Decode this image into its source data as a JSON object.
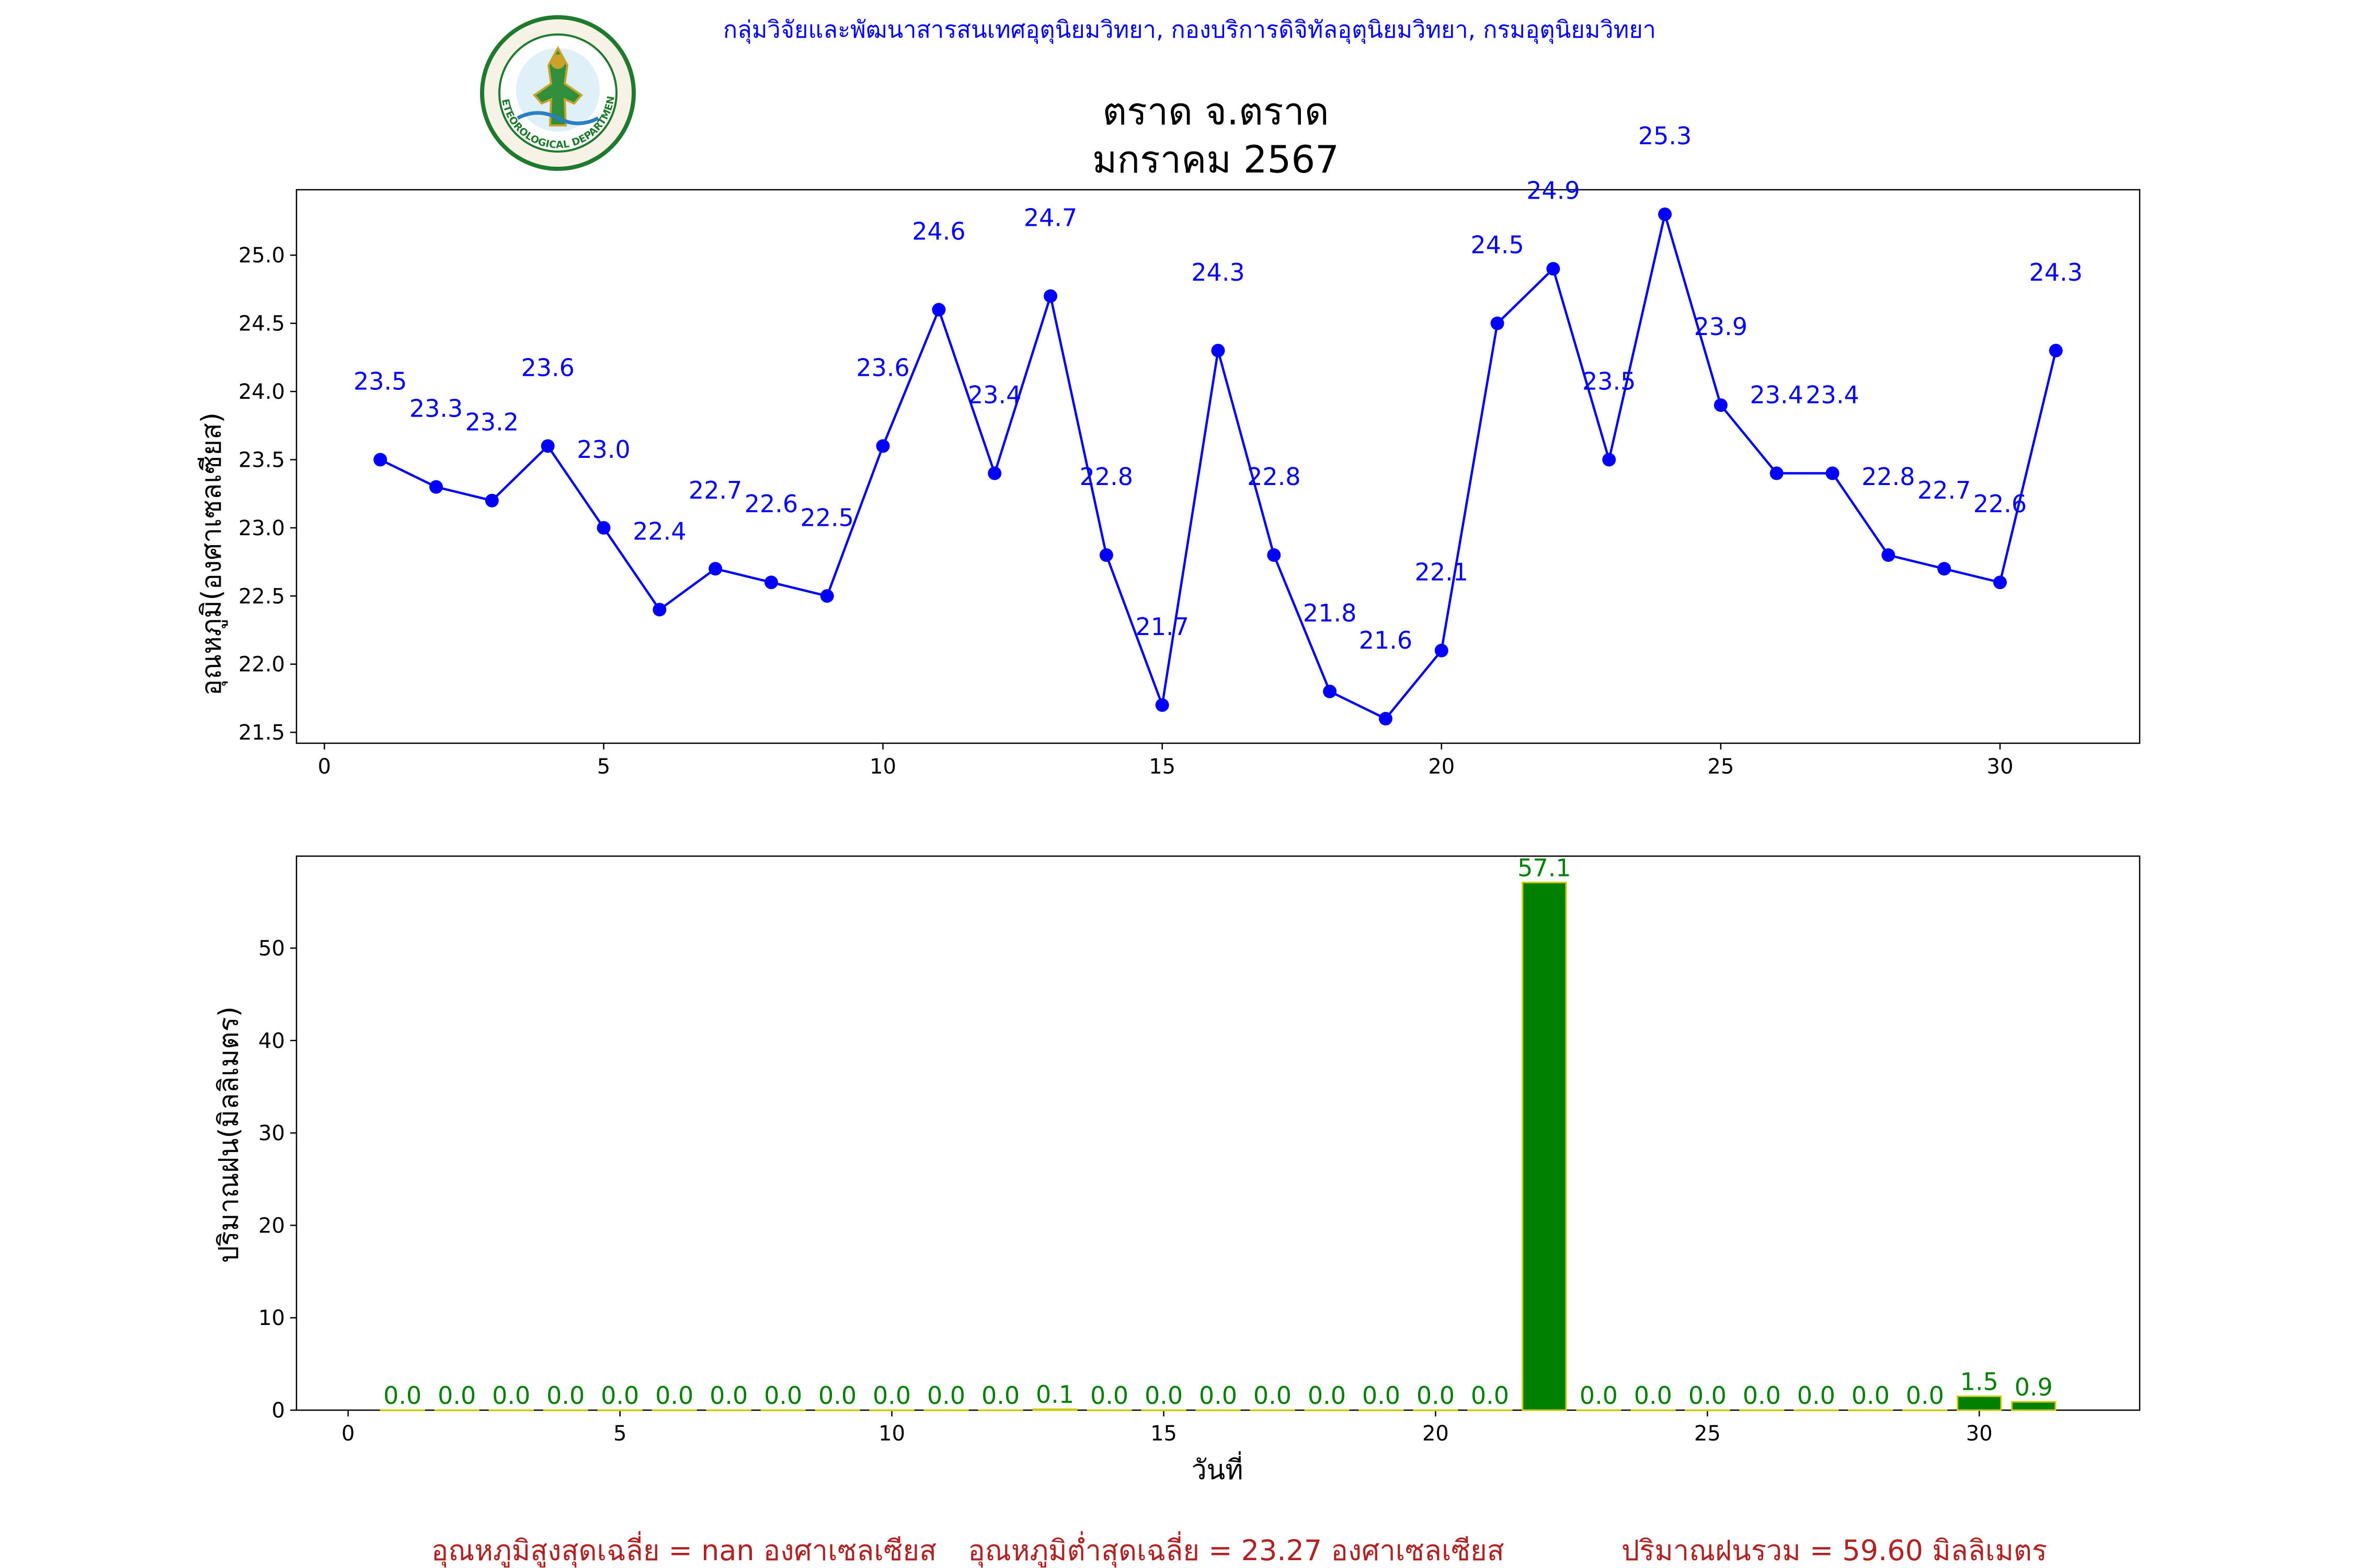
{
  "header": {
    "agency": "กลุ่มวิจัยและพัฒนาสารสนเทศอุตุนิยมวิทยา, กองบริการดิจิทัลอุตุนิยมวิทยา, กรมอุตุนิยมวิทยา",
    "title_line1": "ตราด จ.ตราด",
    "title_line2": "มกราคม 2567",
    "logo_text": "METEOROLOGICAL DEPARTMENT",
    "logo_icon": "meteorological-department-seal"
  },
  "footer": {
    "avg_max": "อุณหภูมิสูงสุดเฉลี่ย = nan องศาเซลเซียส",
    "avg_min": "อุณหภูมิต่ำสุดเฉลี่ย = 23.27 องศาเซลเซียส",
    "total_rain": "ปริมาณฝนรวม = 59.60 มิลลิเมตร"
  },
  "colors": {
    "temperature": "#0000ff",
    "rain_bar": "#008000",
    "rain_edge": "#cccc00",
    "header_text": "#0000ff",
    "footer_text": "#b22222"
  },
  "chart_data": [
    {
      "type": "line",
      "xlabel": "",
      "ylabel": "อุณหภูมิ(องศาเซลเซียส)",
      "x": [
        1,
        2,
        3,
        4,
        5,
        6,
        7,
        8,
        9,
        10,
        11,
        12,
        13,
        14,
        15,
        16,
        17,
        18,
        19,
        20,
        21,
        22,
        23,
        24,
        25,
        26,
        27,
        28,
        29,
        30,
        31
      ],
      "values": [
        23.5,
        23.3,
        23.2,
        23.6,
        23.0,
        22.4,
        22.7,
        22.6,
        22.5,
        23.6,
        24.6,
        23.4,
        24.7,
        22.8,
        21.7,
        24.3,
        22.8,
        21.8,
        21.6,
        22.1,
        24.5,
        24.9,
        23.5,
        25.3,
        23.9,
        23.4,
        23.4,
        22.8,
        22.7,
        22.6,
        24.3
      ],
      "xlim": [
        -0.5,
        32.5
      ],
      "ylim": [
        21.42,
        25.48
      ],
      "xticks": [
        0,
        5,
        10,
        15,
        20,
        25,
        30
      ],
      "yticks": [
        21.5,
        22.0,
        22.5,
        23.0,
        23.5,
        24.0,
        24.5,
        25.0
      ],
      "marker": "circle",
      "data_labels": true
    },
    {
      "type": "bar",
      "xlabel": "วันที่",
      "ylabel": "ปริมาณฝน(มิลลิเมตร)",
      "x": [
        1,
        2,
        3,
        4,
        5,
        6,
        7,
        8,
        9,
        10,
        11,
        12,
        13,
        14,
        15,
        16,
        17,
        18,
        19,
        20,
        21,
        22,
        23,
        24,
        25,
        26,
        27,
        28,
        29,
        30,
        31
      ],
      "values": [
        0.0,
        0.0,
        0.0,
        0.0,
        0.0,
        0.0,
        0.0,
        0.0,
        0.0,
        0.0,
        0.0,
        0.0,
        0.1,
        0.0,
        0.0,
        0.0,
        0.0,
        0.0,
        0.0,
        0.0,
        0.0,
        57.1,
        0.0,
        0.0,
        0.0,
        0.0,
        0.0,
        0.0,
        0.0,
        1.5,
        0.9
      ],
      "xlim": [
        -0.95,
        32.95
      ],
      "ylim": [
        0,
        59.955
      ],
      "xticks": [
        0,
        5,
        10,
        15,
        20,
        25,
        30
      ],
      "yticks": [
        0,
        10,
        20,
        30,
        40,
        50
      ],
      "data_labels": true
    }
  ]
}
